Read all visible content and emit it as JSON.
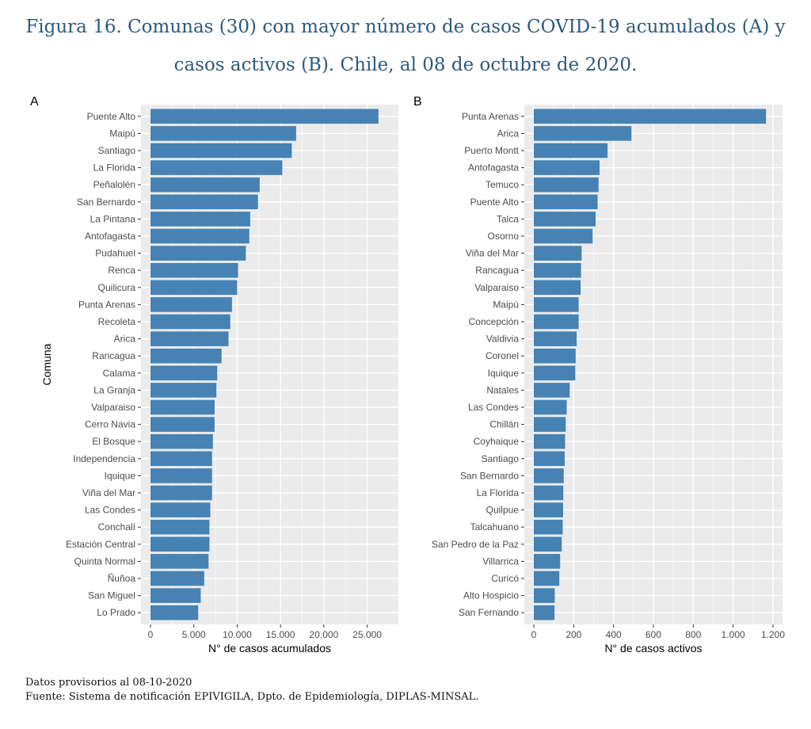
{
  "title": {
    "line1": "Figura 16. Comunas (30) con mayor número de casos COVID-19 acumulados (A) y",
    "line2": "casos activos (B). Chile, al 08 de octubre de 2020."
  },
  "footer": {
    "line1": "Datos provisorios al 08-10-2020",
    "line2": "Fuente: Sistema de notificación EPIVIGILA, Dpto. de Epidemiología, DIPLAS-MINSAL."
  },
  "colors": {
    "bar": "#4682b4",
    "panel_bg": "#ebebeb",
    "grid": "#ffffff"
  },
  "chart_data": [
    {
      "type": "bar",
      "orientation": "horizontal",
      "panel_label": "A",
      "xlabel": "N° de casos acumulados",
      "ylabel": "Comuna",
      "xlim": [
        0,
        27500
      ],
      "x_ticks": [
        0,
        5000,
        10000,
        15000,
        20000,
        25000
      ],
      "x_tick_labels": [
        "0",
        "5.000",
        "10.000",
        "15.000",
        "20.000",
        "25.000"
      ],
      "grid": true,
      "categories": [
        "Puente Alto",
        "Maipú",
        "Santiago",
        "La Florida",
        "Peñalolén",
        "San Bernardo",
        "La Pintana",
        "Antofagasta",
        "Pudahuel",
        "Renca",
        "Quilicura",
        "Punta Arenas",
        "Recoleta",
        "Arica",
        "Rancagua",
        "Calama",
        "La Granja",
        "Valparaiso",
        "Cerro Navia",
        "El Bosque",
        "Independencia",
        "Iquique",
        "Viña del Mar",
        "Las Condes",
        "Conchalí",
        "Estación Central",
        "Quinta Normal",
        "Ñuñoa",
        "San Miguel",
        "Lo Prado"
      ],
      "values": [
        26300,
        16800,
        16300,
        15200,
        12600,
        12400,
        11500,
        11400,
        11000,
        10100,
        10000,
        9400,
        9200,
        9000,
        8200,
        7700,
        7600,
        7400,
        7400,
        7200,
        7100,
        7100,
        7100,
        6900,
        6800,
        6800,
        6700,
        6200,
        5800,
        5500
      ]
    },
    {
      "type": "bar",
      "orientation": "horizontal",
      "panel_label": "B",
      "xlabel": "N° de casos activos",
      "ylabel": "",
      "xlim": [
        0,
        1200
      ],
      "x_ticks": [
        0,
        200,
        400,
        600,
        800,
        1000,
        1200
      ],
      "x_tick_labels": [
        "0",
        "200",
        "400",
        "600",
        "800",
        "1.000",
        "1.200"
      ],
      "grid": true,
      "categories": [
        "Punta Arenas",
        "Arica",
        "Puerto Montt",
        "Antofagasta",
        "Temuco",
        "Puente Alto",
        "Talca",
        "Osorno",
        "Viña del Mar",
        "Rancagua",
        "Valparaiso",
        "Maipú",
        "Concepción",
        "Valdivia",
        "Coronel",
        "Iquique",
        "Natales",
        "Las Condes",
        "Chillán",
        "Coyhaique",
        "Santiago",
        "San Bernardo",
        "La Florida",
        "Quilpue",
        "Talcahuano",
        "San Pedro de la Paz",
        "Villarrica",
        "Curicó",
        "Alto Hospicio",
        "San Fernando"
      ],
      "values": [
        1165,
        490,
        370,
        330,
        325,
        320,
        310,
        295,
        240,
        237,
        235,
        225,
        225,
        215,
        210,
        208,
        180,
        165,
        160,
        157,
        155,
        150,
        148,
        147,
        145,
        140,
        132,
        128,
        105,
        104
      ]
    }
  ]
}
